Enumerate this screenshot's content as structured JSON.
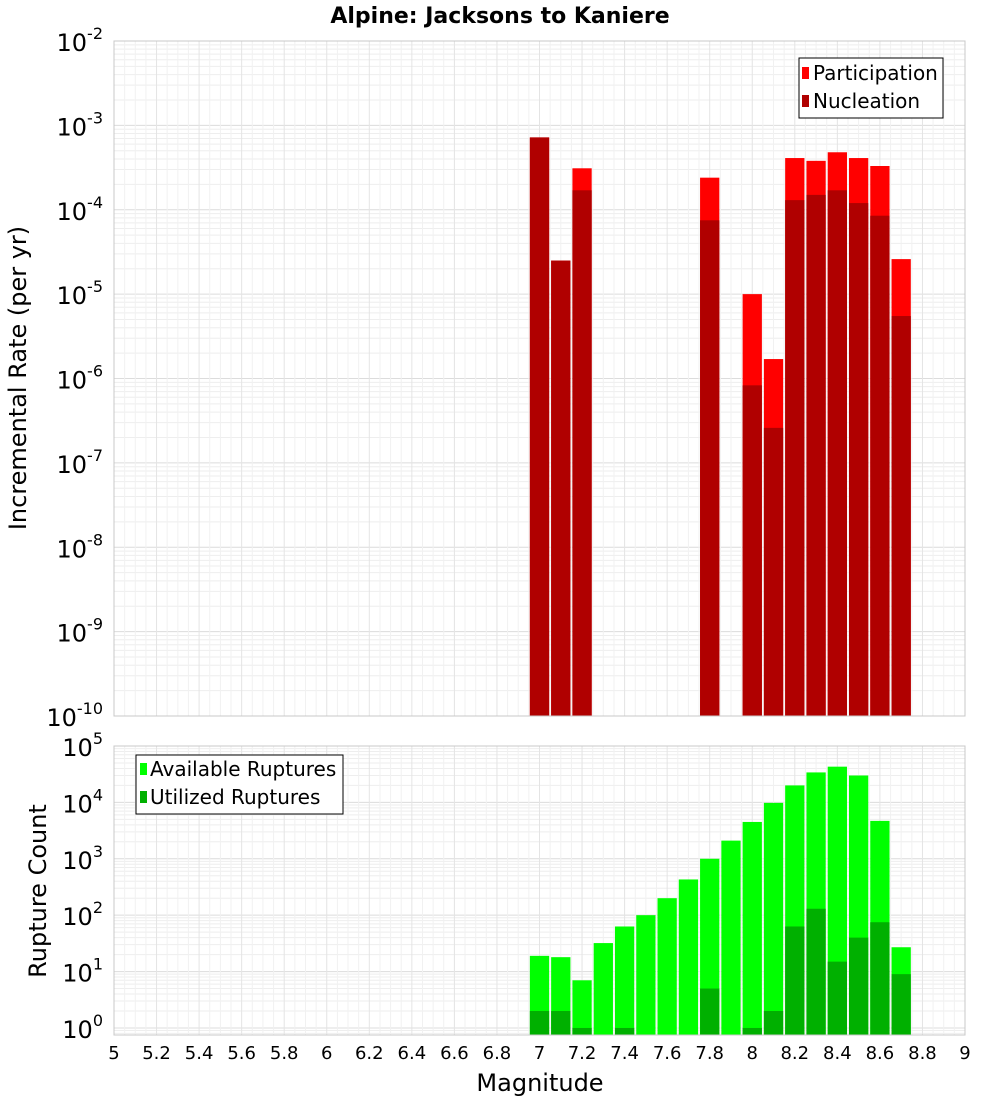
{
  "title": "Alpine: Jacksons to Kaniere",
  "colors": {
    "participation": "#ff0000",
    "nucleation": "#b00000",
    "available": "#00ff00",
    "utilized": "#00b000",
    "grid": "#e6e6e6",
    "frame": "#c8c8c8"
  },
  "chart_data": [
    {
      "type": "bar",
      "title": "Alpine: Jacksons to Kaniere",
      "ylabel": "Incremental Rate (per yr)",
      "xlabel": "",
      "y_scale": "log",
      "ylim": [
        1e-10,
        0.01
      ],
      "xlim": [
        5,
        9
      ],
      "grid": true,
      "legend_position": "top-right",
      "x": [
        7.0,
        7.1,
        7.2,
        7.3,
        7.4,
        7.5,
        7.6,
        7.7,
        7.8,
        7.9,
        8.0,
        8.1,
        8.2,
        8.3,
        8.4,
        8.5,
        8.6,
        8.7
      ],
      "series": [
        {
          "name": "Participation",
          "values": [
            0.00072,
            2.5e-05,
            0.00031,
            null,
            null,
            null,
            null,
            null,
            0.00024,
            null,
            1e-05,
            1.7e-06,
            0.00041,
            0.00038,
            0.00048,
            0.00041,
            0.00033,
            2.6e-05
          ]
        },
        {
          "name": "Nucleation",
          "values": [
            0.00072,
            2.5e-05,
            0.00017,
            null,
            null,
            null,
            null,
            null,
            7.5e-05,
            null,
            8.3e-07,
            2.6e-07,
            0.00013,
            0.00015,
            0.00017,
            0.00012,
            8.5e-05,
            5.5e-06
          ]
        }
      ]
    },
    {
      "type": "bar",
      "title": "",
      "ylabel": "Rupture Count",
      "xlabel": "Magnitude",
      "y_scale": "log",
      "ylim": [
        0.75,
        100000
      ],
      "xlim": [
        5,
        9
      ],
      "grid": true,
      "legend_position": "top-left",
      "x": [
        7.0,
        7.1,
        7.2,
        7.3,
        7.4,
        7.5,
        7.6,
        7.7,
        7.8,
        7.9,
        8.0,
        8.1,
        8.2,
        8.3,
        8.4,
        8.5,
        8.6,
        8.7
      ],
      "series": [
        {
          "name": "Available Ruptures",
          "values": [
            19,
            18,
            7,
            32,
            63,
            100,
            200,
            430,
            1000,
            2100,
            4500,
            9800,
            20000,
            34000,
            43000,
            30000,
            4700,
            27
          ]
        },
        {
          "name": "Utilized Ruptures",
          "values": [
            2,
            2,
            1,
            null,
            1,
            null,
            null,
            null,
            5,
            null,
            1,
            2,
            63,
            130,
            15,
            40,
            75,
            9
          ]
        }
      ]
    }
  ],
  "x_ticks": [
    "5",
    "5.2",
    "5.4",
    "5.6",
    "5.8",
    "6",
    "6.2",
    "6.4",
    "6.6",
    "6.8",
    "7",
    "7.2",
    "7.4",
    "7.6",
    "7.8",
    "8",
    "8.2",
    "8.4",
    "8.6",
    "8.8",
    "9"
  ],
  "top_y_ticks": [
    {
      "base": "10",
      "exp": "-10",
      "value": 1e-10
    },
    {
      "base": "10",
      "exp": "-9",
      "value": 1e-09
    },
    {
      "base": "10",
      "exp": "-8",
      "value": 1e-08
    },
    {
      "base": "10",
      "exp": "-7",
      "value": 1e-07
    },
    {
      "base": "10",
      "exp": "-6",
      "value": 1e-06
    },
    {
      "base": "10",
      "exp": "-5",
      "value": 1e-05
    },
    {
      "base": "10",
      "exp": "-4",
      "value": 0.0001
    },
    {
      "base": "10",
      "exp": "-3",
      "value": 0.001
    },
    {
      "base": "10",
      "exp": "-2",
      "value": 0.01
    }
  ],
  "bottom_y_ticks": [
    {
      "base": "10",
      "exp": "0",
      "value": 1
    },
    {
      "base": "10",
      "exp": "1",
      "value": 10
    },
    {
      "base": "10",
      "exp": "2",
      "value": 100
    },
    {
      "base": "10",
      "exp": "3",
      "value": 1000
    },
    {
      "base": "10",
      "exp": "4",
      "value": 10000
    },
    {
      "base": "10",
      "exp": "5",
      "value": 100000
    }
  ]
}
